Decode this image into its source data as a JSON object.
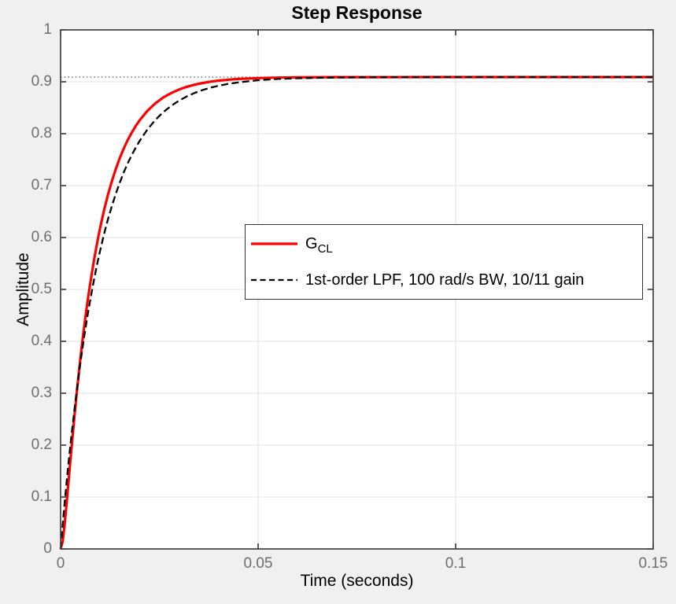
{
  "figure": {
    "background": "#f0f0f0",
    "plot_background": "#ffffff",
    "axes_color": "#4a4a4a",
    "grid_color": "#e6e6e6",
    "tick_label_color": "#6e6e6e"
  },
  "chart_data": {
    "type": "line",
    "title": "Step Response",
    "xlabel": "Time (seconds)",
    "ylabel": "Amplitude",
    "xlim": [
      0,
      0.15
    ],
    "ylim": [
      0,
      1
    ],
    "grid": true,
    "x_ticks": [
      0,
      0.05,
      0.1,
      0.15
    ],
    "x_tick_labels": [
      "0",
      "0.05",
      "0.1",
      "0.15"
    ],
    "y_ticks": [
      0,
      0.1,
      0.2,
      0.3,
      0.4,
      0.5,
      0.6,
      0.7,
      0.8,
      0.9,
      1
    ],
    "y_tick_labels": [
      "0",
      "0.1",
      "0.2",
      "0.3",
      "0.4",
      "0.5",
      "0.6",
      "0.7",
      "0.8",
      "0.9",
      "1"
    ],
    "reference_line": {
      "value": 0.9091,
      "meaning": "steady-state value 10/11",
      "style": "dotted",
      "color": "#737373"
    },
    "t": [
      0,
      0.0005,
      0.001,
      0.0015,
      0.002,
      0.0025,
      0.003,
      0.0035,
      0.004,
      0.0045,
      0.005,
      0.0055,
      0.006,
      0.0065,
      0.007,
      0.0075,
      0.008,
      0.0085,
      0.009,
      0.0095,
      0.01,
      0.011,
      0.012,
      0.013,
      0.014,
      0.015,
      0.016,
      0.017,
      0.018,
      0.019,
      0.02,
      0.022,
      0.024,
      0.026,
      0.028,
      0.03,
      0.032,
      0.034,
      0.036,
      0.038,
      0.04,
      0.0425,
      0.045,
      0.05,
      0.055,
      0.06,
      0.07,
      0.08,
      0.09,
      0.1,
      0.11,
      0.12,
      0.13,
      0.14,
      0.15
    ],
    "series": [
      {
        "name": "G_CL",
        "color": "#ff0000",
        "style": "solid",
        "width": 3.2,
        "final_value": 0.9091,
        "y": [
          0,
          0.0138,
          0.0454,
          0.0853,
          0.1284,
          0.1719,
          0.2145,
          0.2555,
          0.2944,
          0.3314,
          0.3662,
          0.399,
          0.4298,
          0.4588,
          0.4861,
          0.5117,
          0.5358,
          0.5584,
          0.5796,
          0.5996,
          0.6183,
          0.6525,
          0.6826,
          0.7093,
          0.7327,
          0.7535,
          0.7717,
          0.7879,
          0.8021,
          0.8147,
          0.8258,
          0.8442,
          0.8586,
          0.8698,
          0.8784,
          0.8852,
          0.8905,
          0.8946,
          0.8978,
          0.9003,
          0.9022,
          0.9041,
          0.9054,
          0.9071,
          0.908,
          0.9085,
          0.9089,
          0.909,
          0.9091,
          0.9091,
          0.9091,
          0.9091,
          0.9091,
          0.9091,
          0.9091
        ]
      },
      {
        "name": "1st-order LPF, 100 rad/s BW, 10/11 gain",
        "color": "#000000",
        "style": "dashed",
        "width": 2.3,
        "final_value": 0.9091,
        "y": [
          0,
          0.0443,
          0.0865,
          0.1266,
          0.1648,
          0.2011,
          0.2356,
          0.2685,
          0.2997,
          0.3294,
          0.3577,
          0.3846,
          0.4102,
          0.4345,
          0.4576,
          0.4797,
          0.5006,
          0.5205,
          0.5395,
          0.5575,
          0.5747,
          0.6065,
          0.6353,
          0.6613,
          0.6849,
          0.7062,
          0.7256,
          0.743,
          0.7588,
          0.7731,
          0.7861,
          0.8084,
          0.8266,
          0.8416,
          0.8538,
          0.8638,
          0.872,
          0.8788,
          0.8843,
          0.8888,
          0.8924,
          0.8961,
          0.899,
          0.903,
          0.9054,
          0.9068,
          0.9083,
          0.9088,
          0.909,
          0.9091,
          0.9091,
          0.9091,
          0.9091,
          0.9091,
          0.9091
        ]
      }
    ],
    "legend": {
      "position": "center",
      "entries": [
        {
          "label_main": "G",
          "label_sub": "CL"
        },
        {
          "label": "1st-order LPF, 100 rad/s BW, 10/11 gain"
        }
      ]
    }
  }
}
